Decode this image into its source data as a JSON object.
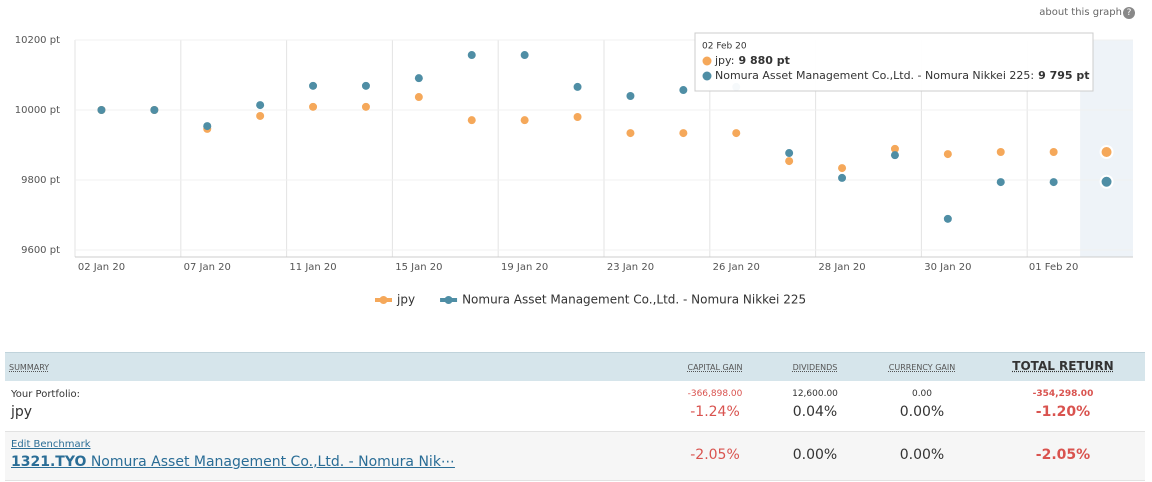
{
  "about_link": "about this graph",
  "chart_data": {
    "type": "line",
    "categories": [
      "02 Jan 20",
      null,
      "07 Jan 20",
      null,
      "11 Jan 20",
      null,
      "15 Jan 20",
      null,
      "19 Jan 20",
      null,
      "23 Jan 20",
      null,
      "26 Jan 20",
      null,
      "28 Jan 20",
      null,
      "30 Jan 20",
      null,
      "01 Feb 20",
      null
    ],
    "series": [
      {
        "name": "jpy",
        "color": "#f5a85a",
        "values": [
          10000,
          10000,
          9946,
          9983,
          10009,
          10009,
          10037,
          9971,
          9971,
          9980,
          9934,
          9934,
          9934,
          9854,
          9834,
          9889,
          9874,
          9880,
          9880,
          9880
        ]
      },
      {
        "name": "Nomura Asset Management Co.,Ltd. - Nomura Nikkei 225",
        "color": "#4f8ea5",
        "values": [
          10000,
          10000,
          9954,
          10014,
          10069,
          10069,
          10091,
          10157,
          10157,
          10066,
          10040,
          10057,
          10066,
          9877,
          9806,
          9871,
          9689,
          9794,
          9794,
          9795
        ]
      }
    ],
    "ylim": [
      9600,
      10200
    ],
    "yticks": [
      {
        "value": 9600,
        "label": "9600 pt"
      },
      {
        "value": 9800,
        "label": "9800 pt"
      },
      {
        "value": 10000,
        "label": "10000 pt"
      },
      {
        "value": 10200,
        "label": "10200 pt"
      }
    ],
    "grid": true,
    "tooltip": {
      "date": "02 Feb 20",
      "items": [
        {
          "label": "jpy:",
          "value": "9 880 pt"
        },
        {
          "label": "Nomura Asset Management Co.,Ltd. - Nomura Nikkei 225:",
          "value": "9 795 pt"
        }
      ]
    }
  },
  "table": {
    "headers": [
      "SUMMARY",
      "CAPITAL GAIN",
      "DIVIDENDS",
      "CURRENCY GAIN",
      "TOTAL RETURN"
    ],
    "portfolio": {
      "label": "Your Portfolio:",
      "name": "jpy",
      "capital_gain": "-366,898.00",
      "capital_gain_pct": "-1.24%",
      "dividends": "12,600.00",
      "dividends_pct": "0.04%",
      "currency_gain": "0.00",
      "currency_gain_pct": "0.00%",
      "total": "-354,298.00",
      "total_pct": "-1.20%"
    },
    "benchmark": {
      "label": "Edit Benchmark",
      "ticker": "1321.TYO",
      "name": "Nomura Asset Management Co.,Ltd. - Nomura Nik⋯",
      "capital_gain_pct": "-2.05%",
      "dividends_pct": "0.00%",
      "currency_gain_pct": "0.00%",
      "total_pct": "-2.05%"
    }
  }
}
